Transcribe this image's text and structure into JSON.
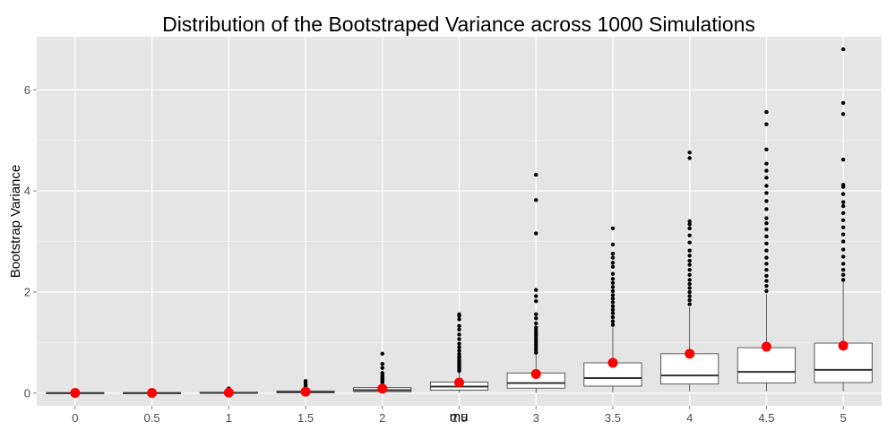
{
  "chart_data": {
    "type": "boxplot",
    "title": "Distribution of the Bootstraped Variance across 1000 Simulations",
    "xlabel": "mu",
    "ylabel": "Bootstrap Variance",
    "categories": [
      "0",
      "0.5",
      "1",
      "1.5",
      "2",
      "2.5",
      "3",
      "3.5",
      "4",
      "4.5",
      "5"
    ],
    "yticks": [
      0,
      2,
      4,
      6
    ],
    "ylim": [
      -0.25,
      7.05
    ],
    "grid": true,
    "colors": {
      "panel": "#e5e5e5",
      "grid": "#ffffff",
      "box_fill": "#ffffff",
      "box_stroke": "#333333",
      "outlier": "#000000",
      "mean_marker": "#ff0000"
    },
    "boxes": [
      {
        "category": "0",
        "min": 0,
        "q1": 0,
        "median": 0.003,
        "q3": 0.006,
        "max": 0.012,
        "mean": 0.004,
        "outliers": []
      },
      {
        "category": "0.5",
        "min": 0,
        "q1": 0.001,
        "median": 0.003,
        "q3": 0.006,
        "max": 0.012,
        "mean": 0.004,
        "outliers": []
      },
      {
        "category": "1",
        "min": 0,
        "q1": 0.004,
        "median": 0.008,
        "q3": 0.018,
        "max": 0.04,
        "mean": 0.012,
        "outliers": [
          0.05,
          0.065,
          0.08,
          0.095
        ]
      },
      {
        "category": "1.5",
        "min": 0.002,
        "q1": 0.01,
        "median": 0.02,
        "q3": 0.04,
        "max": 0.09,
        "mean": 0.03,
        "outliers": [
          0.1,
          0.13,
          0.16,
          0.2,
          0.24
        ]
      },
      {
        "category": "2",
        "min": 0.005,
        "q1": 0.03,
        "median": 0.06,
        "q3": 0.11,
        "max": 0.2,
        "mean": 0.09,
        "outliers": [
          0.21,
          0.23,
          0.25,
          0.27,
          0.29,
          0.31,
          0.33,
          0.36,
          0.4,
          0.5,
          0.58,
          0.78
        ]
      },
      {
        "category": "2.5",
        "min": 0.01,
        "q1": 0.06,
        "median": 0.13,
        "q3": 0.22,
        "max": 0.42,
        "mean": 0.21,
        "outliers": [
          0.44,
          0.47,
          0.5,
          0.53,
          0.56,
          0.59,
          0.62,
          0.65,
          0.69,
          0.73,
          0.78,
          0.84,
          0.91,
          0.98,
          1.07,
          1.16,
          1.26,
          1.33,
          1.46,
          1.53,
          1.56
        ]
      },
      {
        "category": "3",
        "min": 0.01,
        "q1": 0.1,
        "median": 0.2,
        "q3": 0.4,
        "max": 0.76,
        "mean": 0.38,
        "outliers": [
          0.8,
          0.85,
          0.9,
          0.95,
          1.0,
          1.05,
          1.1,
          1.15,
          1.2,
          1.25,
          1.3,
          1.38,
          1.48,
          1.56,
          1.82,
          1.92,
          2.04,
          3.16,
          3.82,
          4.32
        ]
      },
      {
        "category": "3.5",
        "min": 0.02,
        "q1": 0.14,
        "median": 0.3,
        "q3": 0.6,
        "max": 1.3,
        "mean": 0.6,
        "outliers": [
          1.35,
          1.42,
          1.5,
          1.58,
          1.65,
          1.72,
          1.8,
          1.87,
          1.94,
          2.02,
          2.1,
          2.18,
          2.26,
          2.36,
          2.5,
          2.58,
          2.68,
          2.76,
          2.94,
          3.26
        ]
      },
      {
        "category": "4",
        "min": 0.03,
        "q1": 0.18,
        "median": 0.35,
        "q3": 0.78,
        "max": 1.7,
        "mean": 0.78,
        "outliers": [
          1.76,
          1.84,
          1.92,
          2.0,
          2.08,
          2.16,
          2.24,
          2.34,
          2.44,
          2.54,
          2.62,
          2.72,
          2.82,
          2.98,
          3.12,
          3.26,
          3.34,
          3.4,
          4.65,
          4.76
        ]
      },
      {
        "category": "4.5",
        "min": 0.03,
        "q1": 0.2,
        "median": 0.42,
        "q3": 0.9,
        "max": 1.96,
        "mean": 0.92,
        "outliers": [
          2.02,
          2.12,
          2.22,
          2.32,
          2.44,
          2.56,
          2.68,
          2.82,
          2.96,
          3.1,
          3.24,
          3.36,
          3.46,
          3.64,
          3.8,
          3.96,
          4.1,
          4.26,
          4.4,
          4.54,
          4.82,
          5.32,
          5.56
        ]
      },
      {
        "category": "5",
        "min": 0.03,
        "q1": 0.21,
        "median": 0.46,
        "q3": 0.99,
        "max": 2.2,
        "mean": 0.94,
        "outliers": [
          2.24,
          2.34,
          2.44,
          2.56,
          2.7,
          2.84,
          3.0,
          3.14,
          3.28,
          3.42,
          3.56,
          3.7,
          3.78,
          3.94,
          4.08,
          4.12,
          4.62,
          5.52,
          5.74,
          6.8
        ]
      }
    ]
  }
}
